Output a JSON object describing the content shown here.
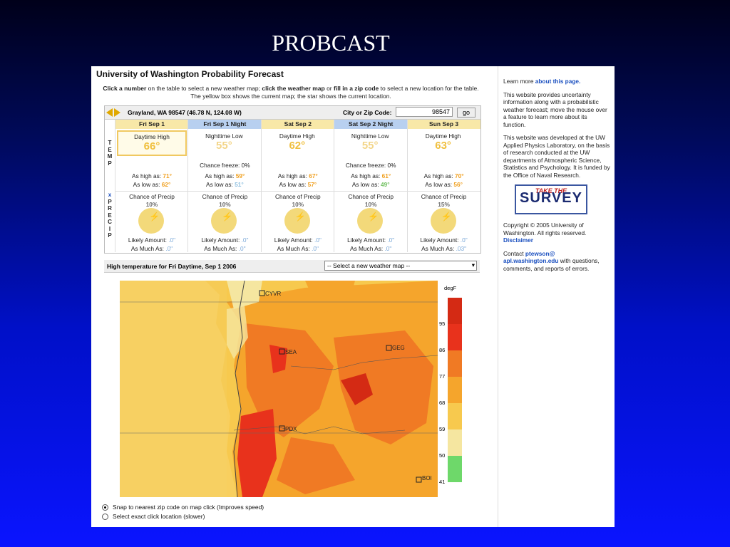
{
  "slide_title": "PROBCAST",
  "app": {
    "title": "University of Washington Probability Forecast",
    "instructions": {
      "p1": "Click a number",
      "p2": " on the table to select a new weather map; ",
      "p3": "click the weather map",
      "p4": " or ",
      "p5": "fill in a zip code",
      "p6": " to select a new location for the table. The yellow box shows the current map; the star shows the current location."
    }
  },
  "location": {
    "name": "Grayland, WA 98547 (46.78 N, 124.08 W)",
    "zip_label": "City or Zip Code:",
    "zip_value": "98547",
    "go_label": "go"
  },
  "row_labels": {
    "temp": "T\nE\nM\nP",
    "precip_x": "x",
    "precip": "P\nR\nE\nC\nI\nP"
  },
  "days": [
    {
      "header": "Fri Sep 1",
      "night": false,
      "temp_label": "Daytime High",
      "temp": "66°",
      "freeze": "",
      "hi_label": "As high as: ",
      "hi": "71°",
      "lo_label": "As low as: ",
      "lo": "62°",
      "precip_label": "Chance of Precip",
      "precip_pct": "10%",
      "likely_label": "Likely Amount: ",
      "likely": ".0\"",
      "asmuch_label": "As Much As: ",
      "asmuch": ".0\""
    },
    {
      "header": "Fri Sep 1 Night",
      "night": true,
      "temp_label": "Nighttime Low",
      "temp": "55°",
      "freeze": "Chance freeze: 0%",
      "hi_label": "As high as: ",
      "hi": "59°",
      "lo_label": "As low as: ",
      "lo": "51°",
      "precip_label": "Chance of Precip",
      "precip_pct": "10%",
      "likely_label": "Likely Amount: ",
      "likely": ".0\"",
      "asmuch_label": "As Much As: ",
      "asmuch": ".0\""
    },
    {
      "header": "Sat Sep 2",
      "night": false,
      "temp_label": "Daytime High",
      "temp": "62°",
      "freeze": "",
      "hi_label": "As high as: ",
      "hi": "67°",
      "lo_label": "As low as: ",
      "lo": "57°",
      "precip_label": "Chance of Precip",
      "precip_pct": "10%",
      "likely_label": "Likely Amount: ",
      "likely": ".0\"",
      "asmuch_label": "As Much As: ",
      "asmuch": ".0\""
    },
    {
      "header": "Sat Sep 2 Night",
      "night": true,
      "temp_label": "Nighttime Low",
      "temp": "55°",
      "freeze": "Chance freeze: 0%",
      "hi_label": "As high as: ",
      "hi": "61°",
      "lo_label": "As low as: ",
      "lo": "49°",
      "precip_label": "Chance of Precip",
      "precip_pct": "10%",
      "likely_label": "Likely Amount: ",
      "likely": ".0\"",
      "asmuch_label": "As Much As: ",
      "asmuch": ".0\""
    },
    {
      "header": "Sun Sep 3",
      "night": false,
      "temp_label": "Daytime High",
      "temp": "63°",
      "freeze": "",
      "hi_label": "As high as: ",
      "hi": "70°",
      "lo_label": "As low as: ",
      "lo": "56°",
      "precip_label": "Chance of Precip",
      "precip_pct": "15%",
      "likely_label": "Likely Amount: ",
      "likely": ".0\"",
      "asmuch_label": "As Much As: ",
      "asmuch": ".03\""
    }
  ],
  "map": {
    "title": "High temperature for Fri Daytime, Sep 1 2006",
    "select_value": "-- Select a new weather map --",
    "cities": [
      "CYVR",
      "SEA",
      "GEG",
      "PDX",
      "BOI"
    ],
    "unit": "degF",
    "scale_ticks": [
      "95",
      "86",
      "77",
      "68",
      "59",
      "50",
      "41"
    ],
    "scale_colors": [
      "#d42a14",
      "#e8321c",
      "#f07a24",
      "#f5a52c",
      "#f7c94e",
      "#f5e6a0",
      "#6ed86a"
    ]
  },
  "options": [
    {
      "label": "Snap to nearest zip code on map click (Improves speed)",
      "checked": true
    },
    {
      "label": "Select exact click location (slower)",
      "checked": false
    }
  ],
  "sidebar": {
    "learn_prefix": "Learn more ",
    "learn_link": "about this page.",
    "p1": "This website provides uncertainty information along with a probabilistic weather forecast; move the mouse over a feature to learn more about its function.",
    "p2": "This website was developed at the UW Applied Physics Laboratory, on the basis of research conducted at the UW departments of Atmospheric Science, Statistics and Psychology. It is funded by the Office of Naval Research.",
    "survey_top": "TAKE THE",
    "survey_main": "SURVEY",
    "copyright": "Copyright © 2005 University of Washington. All rights reserved.",
    "disclaimer": "Disclaimer",
    "contact_prefix": "Contact ",
    "contact_email": "ptewson@ apl.washington.edu",
    "contact_suffix": " with questions, comments, and reports of errors."
  }
}
